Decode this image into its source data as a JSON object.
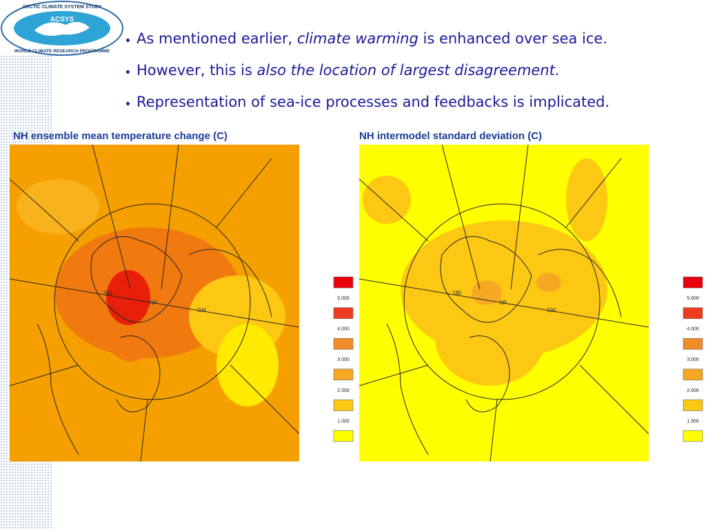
{
  "logo": {
    "top": "ARCTIC CLIMATE SYSTEM STUDY",
    "center": "ACSYS",
    "bottom": "WORLD CLIMATE RESEARCH PROGRAMME"
  },
  "bullets": [
    [
      {
        "text": "As mentioned earlier, ",
        "italic": false
      },
      {
        "text": "climate warming",
        "italic": true
      },
      {
        "text": " is enhanced over sea ice.",
        "italic": false
      }
    ],
    [
      {
        "text": "However, this is ",
        "italic": false
      },
      {
        "text": "also the location of largest disagreement",
        "italic": true
      },
      {
        "text": ".",
        "italic": false
      }
    ],
    [
      {
        "text": "Representation of sea-ice processes and feedbacks is implicated.",
        "italic": false
      }
    ]
  ],
  "panels": [
    {
      "title": "NH ensemble mean temperature change (C)",
      "grid_labels": [
        "180",
        "NP",
        "GM"
      ]
    },
    {
      "title": "NH intermodel standard deviation (C)",
      "grid_labels": [
        "180",
        "NP",
        "GM"
      ]
    }
  ],
  "legend": {
    "colors": [
      "#e8000b",
      "#f03c1e",
      "#f08c28",
      "#f7a823",
      "#fcc814",
      "#ffff00"
    ],
    "labels": [
      "5.000",
      "4.000",
      "3.000",
      "2.000",
      "1.000"
    ]
  }
}
